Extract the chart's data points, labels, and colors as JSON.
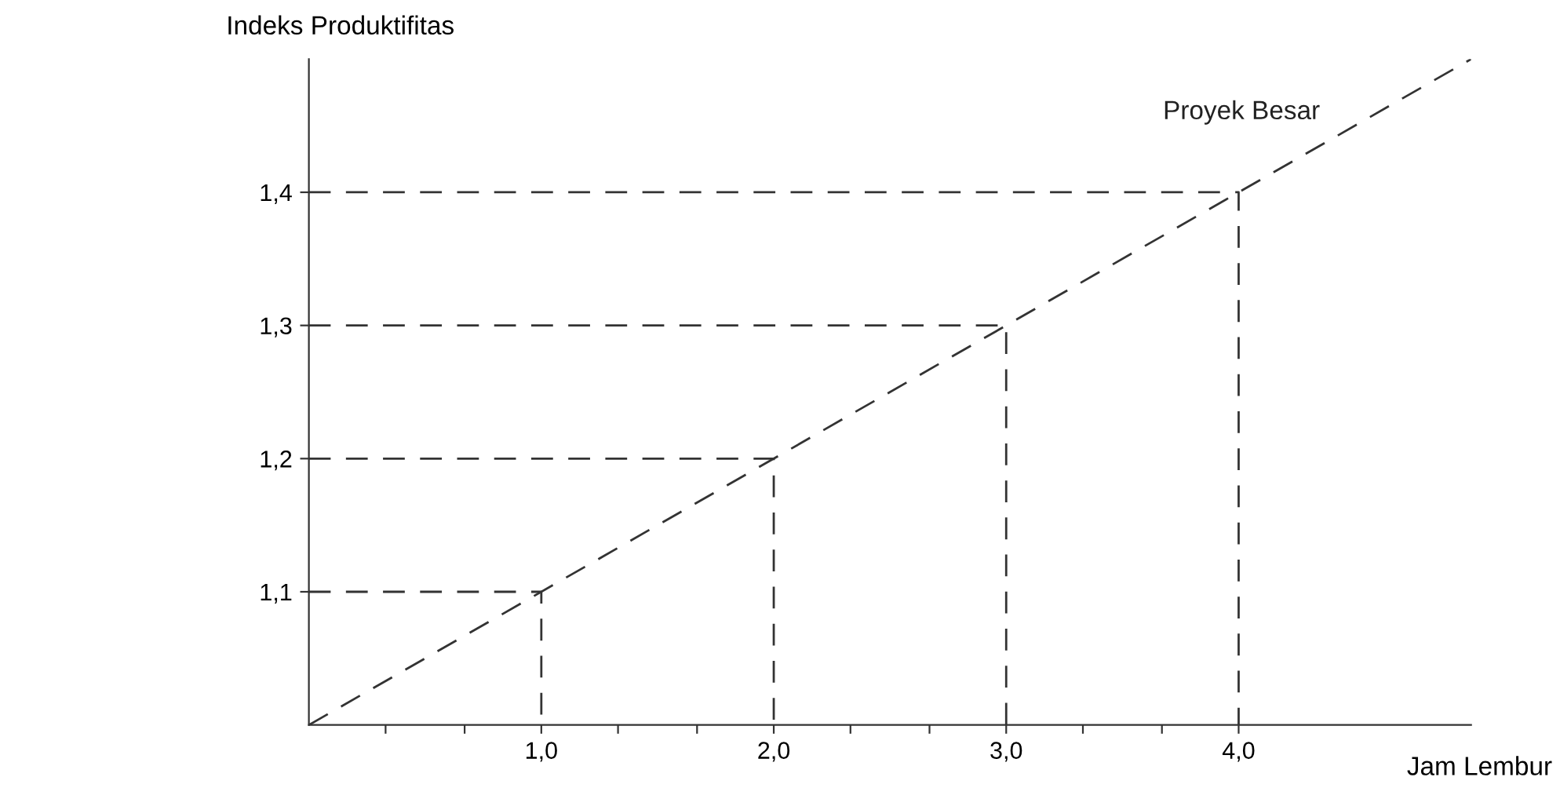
{
  "chart_data": {
    "type": "line",
    "xlabel": "Jam Lembur",
    "ylabel": "Indeks Produktifitas",
    "xlim": [
      0,
      5
    ],
    "ylim": [
      1.0,
      1.5
    ],
    "xticks": [
      {
        "value": 0.33,
        "label": null
      },
      {
        "value": 0.67,
        "label": null
      },
      {
        "value": 1,
        "label": "1,0"
      },
      {
        "value": 1.33,
        "label": null
      },
      {
        "value": 1.67,
        "label": null
      },
      {
        "value": 2,
        "label": "2,0"
      },
      {
        "value": 2.33,
        "label": null
      },
      {
        "value": 2.67,
        "label": null
      },
      {
        "value": 3,
        "label": "3,0"
      },
      {
        "value": 3.33,
        "label": null
      },
      {
        "value": 3.67,
        "label": null
      },
      {
        "value": 4,
        "label": "4,0"
      }
    ],
    "yticks": [
      {
        "value": 1.1,
        "label": "1,1"
      },
      {
        "value": 1.2,
        "label": "1,2"
      },
      {
        "value": 1.3,
        "label": "1,3"
      },
      {
        "value": 1.4,
        "label": "1,4"
      }
    ],
    "grid": false,
    "legend": false,
    "marker": "none",
    "line_style": "dashed",
    "series": [
      {
        "name": "Proyek Besar",
        "color": "#333333",
        "x": [
          0,
          5
        ],
        "values": [
          1.0,
          1.5
        ]
      },
      {
        "color": "#333333",
        "x": [
          0,
          1,
          1
        ],
        "values": [
          1.1,
          1.1,
          1.0
        ]
      },
      {
        "color": "#333333",
        "x": [
          0,
          2,
          2
        ],
        "values": [
          1.2,
          1.2,
          1.0
        ]
      },
      {
        "color": "#333333",
        "x": [
          0,
          3,
          3
        ],
        "values": [
          1.3,
          1.3,
          1.0
        ]
      },
      {
        "color": "#333333",
        "x": [
          0,
          4,
          4
        ],
        "values": [
          1.4,
          1.4,
          1.0
        ]
      }
    ]
  }
}
